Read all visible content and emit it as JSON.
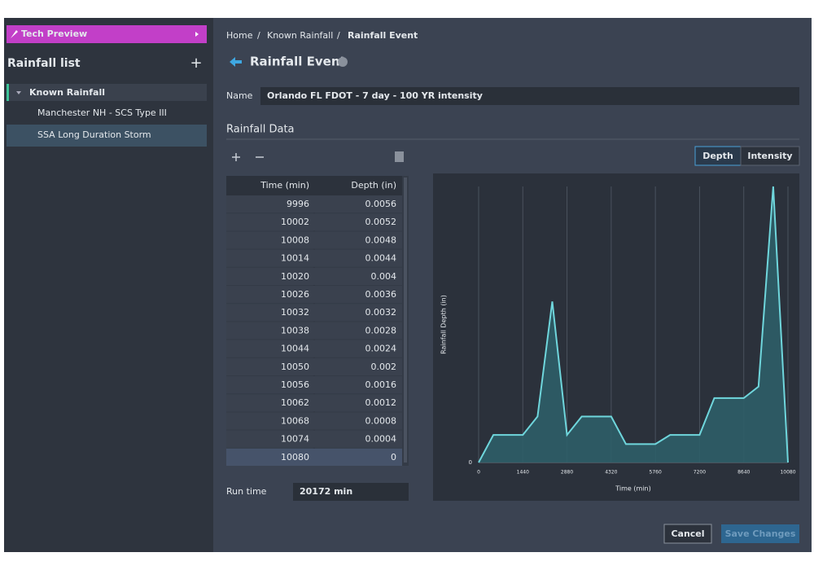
{
  "sidebar": {
    "badge": "Tech Preview",
    "title": "Rainfall list",
    "add": "+",
    "tree": {
      "group": "Known Rainfall",
      "items": [
        "Manchester NH - SCS Type III",
        "SSA Long Duration Storm"
      ]
    }
  },
  "breadcrumb": {
    "items": [
      "Home",
      "Known Rainfall",
      "Rainfall Event"
    ],
    "separator": "/"
  },
  "header": {
    "title": "Rainfall Event"
  },
  "form": {
    "name_label": "Name",
    "name_value": "Orlando FL FDOT - 7 day - 100 YR intensity",
    "section": "Rainfall Data",
    "run_time_label": "Run time",
    "run_time_value": "20172 min"
  },
  "tabs": [
    "Depth",
    "Intensity"
  ],
  "table": {
    "columns": [
      "Time (min)",
      "Depth (in)"
    ],
    "rows": [
      [
        9996,
        0.0056
      ],
      [
        10002,
        0.0052
      ],
      [
        10008,
        0.0048
      ],
      [
        10014,
        0.0044
      ],
      [
        10020,
        0.004
      ],
      [
        10026,
        0.0036
      ],
      [
        10032,
        0.0032
      ],
      [
        10038,
        0.0028
      ],
      [
        10044,
        0.0024
      ],
      [
        10050,
        0.002
      ],
      [
        10056,
        0.0016
      ],
      [
        10062,
        0.0012
      ],
      [
        10068,
        0.0008
      ],
      [
        10074,
        0.0004
      ],
      [
        10080,
        0
      ]
    ]
  },
  "buttons": [
    "Cancel",
    "Save Changes"
  ],
  "chart_data": {
    "type": "area",
    "x_label": "Time (min)",
    "y_label": "Rainfall Depth (in)",
    "x": [
      0,
      480,
      1440,
      1920,
      2400,
      2880,
      3360,
      4320,
      4800,
      5760,
      6240,
      7200,
      7680,
      8640,
      9120,
      9600,
      10080
    ],
    "values": [
      0,
      0.012,
      0.012,
      0.02,
      0.07,
      0.012,
      0.02,
      0.02,
      0.008,
      0.008,
      0.012,
      0.012,
      0.028,
      0.028,
      0.033,
      0.12,
      0
    ],
    "xlim": [
      0,
      10080
    ],
    "xticks": [
      0,
      1440,
      2880,
      4320,
      5760,
      7200,
      8640,
      10080
    ],
    "ylim": [
      0,
      0.12
    ],
    "yticks": [
      0
    ],
    "grid": true,
    "color": "#6fd6dc",
    "fill": "#2e5e68"
  }
}
